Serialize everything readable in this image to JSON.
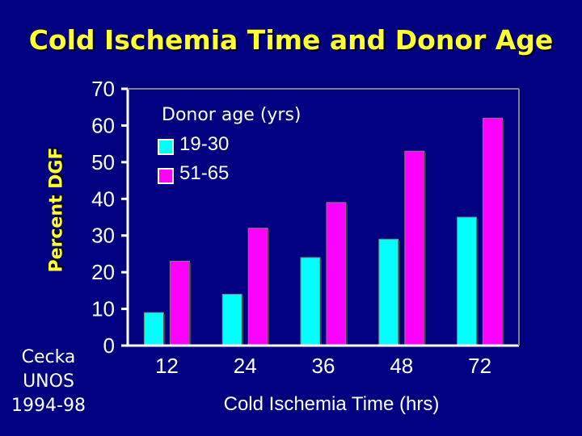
{
  "colors": {
    "background": "#000080",
    "title": "#ffff33",
    "series_1": "#00ffff",
    "series_2": "#ff00ff",
    "text": "#ffffff"
  },
  "source_text": [
    "Cecka",
    "UNOS",
    "1994-98"
  ],
  "chart_data": {
    "type": "bar",
    "title": "Cold Ischemia Time and Donor Age",
    "xlabel": "Cold Ischemia Time (hrs)",
    "ylabel": "Percent DGF",
    "categories": [
      "12",
      "24",
      "36",
      "48",
      "72"
    ],
    "ylim": [
      0,
      70
    ],
    "yticks": [
      "0",
      "10",
      "20",
      "30",
      "40",
      "50",
      "60",
      "70"
    ],
    "legend_title": "Donor age (yrs)",
    "legend_position": "top-left",
    "grid": false,
    "series": [
      {
        "name": "19-30",
        "color": "#00ffff",
        "values": [
          9,
          14,
          24,
          29,
          35
        ]
      },
      {
        "name": "51-65",
        "color": "#ff00ff",
        "values": [
          23,
          32,
          39,
          53,
          62
        ]
      }
    ]
  }
}
